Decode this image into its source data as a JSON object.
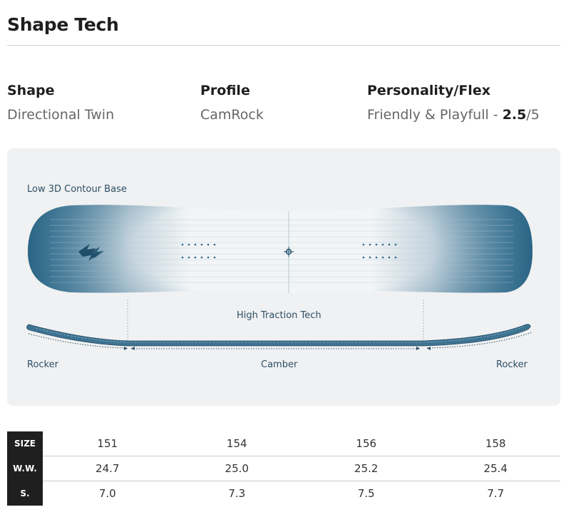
{
  "title": "Shape Tech",
  "specs": {
    "shape": {
      "label": "Shape",
      "value": "Directional Twin"
    },
    "profile": {
      "label": "Profile",
      "value": "CamRock"
    },
    "personality": {
      "label": "Personality/Flex",
      "value_prefix": "Friendly & Playfull - ",
      "score": "2.5",
      "max": "/5"
    }
  },
  "diagram": {
    "base_label": "Low 3D Contour Base",
    "traction_label": "High Traction Tech",
    "rocker_left": "Rocker",
    "camber": "Camber",
    "rocker_right": "Rocker",
    "colors": {
      "board_edge": "#2b6585",
      "board_center": "#f4f6f7",
      "text": "#2c4f66"
    }
  },
  "table": {
    "rows": [
      {
        "header": "SIZE",
        "values": [
          "151",
          "154",
          "156",
          "158"
        ]
      },
      {
        "header": "W.W.",
        "values": [
          "24.7",
          "25.0",
          "25.2",
          "25.4"
        ]
      },
      {
        "header": "S.",
        "values": [
          "7.0",
          "7.3",
          "7.5",
          "7.7"
        ]
      }
    ]
  }
}
